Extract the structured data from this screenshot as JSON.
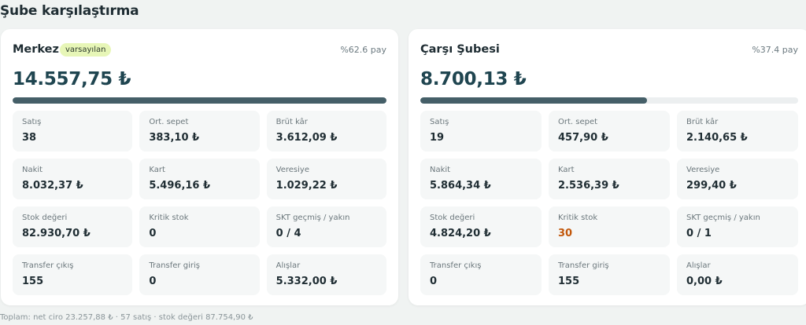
{
  "page": {
    "title": "Şube karşılaştırma",
    "footer": "Toplam: net ciro 23.257,88 ₺ · 57 satış · stok değeri 87.754,90 ₺"
  },
  "colors": {
    "accent": "#455f68",
    "badge_bg": "#e7f6b7",
    "warning": "#c2570a",
    "amount": "#1f4550"
  },
  "branches": [
    {
      "name": "Merkez",
      "badge": "varsayılan",
      "share": "%62.6 pay",
      "share_fraction": 1.0,
      "amount": "14.557,75 ₺",
      "stats": [
        {
          "label": "Satış",
          "value": "38"
        },
        {
          "label": "Ort. sepet",
          "value": "383,10 ₺"
        },
        {
          "label": "Brüt kâr",
          "value": "3.612,09 ₺"
        },
        {
          "label": "Nakit",
          "value": "8.032,37 ₺"
        },
        {
          "label": "Kart",
          "value": "5.496,16 ₺"
        },
        {
          "label": "Veresiye",
          "value": "1.029,22 ₺"
        },
        {
          "label": "Stok değeri",
          "value": "82.930,70 ₺"
        },
        {
          "label": "Kritik stok",
          "value": "0"
        },
        {
          "label": "SKT geçmiş / yakın",
          "value": "0 / 4"
        },
        {
          "label": "Transfer çıkış",
          "value": "155"
        },
        {
          "label": "Transfer giriş",
          "value": "0"
        },
        {
          "label": "Alışlar",
          "value": "5.332,00 ₺"
        }
      ]
    },
    {
      "name": "Çarşı Şubesi",
      "badge": "",
      "share": "%37.4 pay",
      "share_fraction": 0.6,
      "amount": "8.700,13 ₺",
      "stats": [
        {
          "label": "Satış",
          "value": "19"
        },
        {
          "label": "Ort. sepet",
          "value": "457,90 ₺"
        },
        {
          "label": "Brüt kâr",
          "value": "2.140,65 ₺"
        },
        {
          "label": "Nakit",
          "value": "5.864,34 ₺"
        },
        {
          "label": "Kart",
          "value": "2.536,39 ₺"
        },
        {
          "label": "Veresiye",
          "value": "299,40 ₺"
        },
        {
          "label": "Stok değeri",
          "value": "4.824,20 ₺"
        },
        {
          "label": "Kritik stok",
          "value": "30",
          "warn": true
        },
        {
          "label": "SKT geçmiş / yakın",
          "value": "0 / 1"
        },
        {
          "label": "Transfer çıkış",
          "value": "0"
        },
        {
          "label": "Transfer giriş",
          "value": "155"
        },
        {
          "label": "Alışlar",
          "value": "0,00 ₺"
        }
      ]
    }
  ]
}
